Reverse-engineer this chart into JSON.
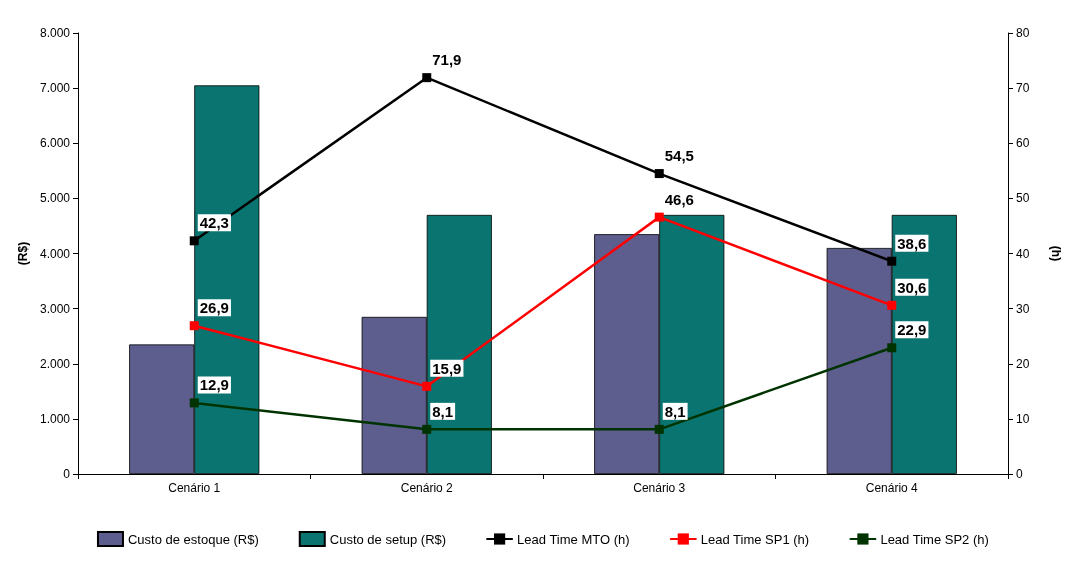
{
  "chart_data": {
    "type": "bar",
    "ylabel": "(R$)",
    "y2label": "(h)",
    "categories": [
      "Cenário 1",
      "Cenário 2",
      "Cenário 3",
      "Cenário 4"
    ],
    "series": [
      {
        "name": "Custo de estoque (R$)",
        "color": "#5e5e8e",
        "values": [
          2350,
          2850,
          4350,
          4100
        ]
      },
      {
        "name": "Custo de setup (R$)",
        "color": "#0a7470",
        "values": [
          7050,
          4700,
          4700,
          4700
        ]
      },
      {
        "name": "Lead Time MTO (h)",
        "type": "line",
        "axis": "y2",
        "color": "#000000",
        "values": [
          42.3,
          71.9,
          54.5,
          38.6
        ],
        "value_labels": [
          "42,3",
          "71,9",
          "54,5",
          "38,6"
        ]
      },
      {
        "name": "Lead Time SP1 (h)",
        "type": "line",
        "axis": "y2",
        "color": "#ff0000",
        "values": [
          26.9,
          15.9,
          46.6,
          30.6
        ],
        "value_labels": [
          "26,9",
          "15,9",
          "46,6",
          "30,6"
        ]
      },
      {
        "name": "Lead Time SP2 (h)",
        "type": "line",
        "axis": "y2",
        "color": "#003300",
        "values": [
          12.9,
          8.1,
          8.1,
          22.9
        ],
        "value_labels": [
          "12,9",
          "8,1",
          "8,1",
          "22,9"
        ]
      }
    ],
    "ylim": [
      0,
      8000
    ],
    "yticks": [
      {
        "value": 0,
        "label": "0"
      },
      {
        "value": 1000,
        "label": "1.000"
      },
      {
        "value": 2000,
        "label": "2.000"
      },
      {
        "value": 3000,
        "label": "3.000"
      },
      {
        "value": 4000,
        "label": "4.000"
      },
      {
        "value": 5000,
        "label": "5.000"
      },
      {
        "value": 6000,
        "label": "6.000"
      },
      {
        "value": 7000,
        "label": "7.000"
      },
      {
        "value": 8000,
        "label": "8.000"
      }
    ],
    "y2lim": [
      0,
      80
    ],
    "y2ticks": [
      0,
      10,
      20,
      30,
      40,
      50,
      60,
      70,
      80
    ],
    "grid": false,
    "legend": "bottom",
    "marker": "square",
    "line_style": "solid"
  }
}
